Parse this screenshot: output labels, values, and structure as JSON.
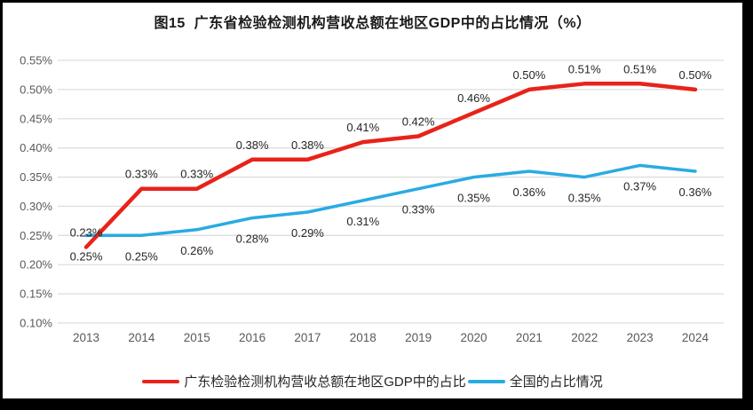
{
  "chart_data": {
    "type": "line",
    "title": "图15  广东省检验检测机构营收总额在地区GDP中的占比情况（%）",
    "x_tick_labels": [
      "2013",
      "2014",
      "2015",
      "2016",
      "2017",
      "2018",
      "2019",
      "2020",
      "2021",
      "2022",
      "2023",
      "2024"
    ],
    "y_axis": {
      "min": 0.1,
      "max": 0.55,
      "step": 0.05,
      "tick_suffix": "%",
      "tick_decimals": 2
    },
    "grid": true,
    "legend_position": "bottom",
    "colors": {
      "gridline": "#dedede",
      "tick_text": "#595959",
      "data_label_text": "#262626"
    },
    "series": [
      {
        "name": "广东检验检测机构营收总额在地区GDP中的占比",
        "color": "#e8231a",
        "label_position": "above",
        "values": [
          0.23,
          0.33,
          0.33,
          0.38,
          0.38,
          0.41,
          0.42,
          0.46,
          0.5,
          0.51,
          0.51,
          0.5
        ],
        "labels": [
          "0.23%",
          "0.33%",
          "0.33%",
          "0.38%",
          "0.38%",
          "0.41%",
          "0.42%",
          "0.46%",
          "0.50%",
          "0.51%",
          "0.51%",
          "0.50%"
        ]
      },
      {
        "name": "全国的占比情况",
        "color": "#29abe2",
        "label_position": "below",
        "values": [
          0.25,
          0.25,
          0.26,
          0.28,
          0.29,
          0.31,
          0.33,
          0.35,
          0.36,
          0.35,
          0.37,
          0.36
        ],
        "labels": [
          "0.25%",
          "0.25%",
          "0.26%",
          "0.28%",
          "0.29%",
          "0.31%",
          "0.33%",
          "0.35%",
          "0.36%",
          "0.35%",
          "0.37%",
          "0.36%"
        ]
      }
    ]
  }
}
